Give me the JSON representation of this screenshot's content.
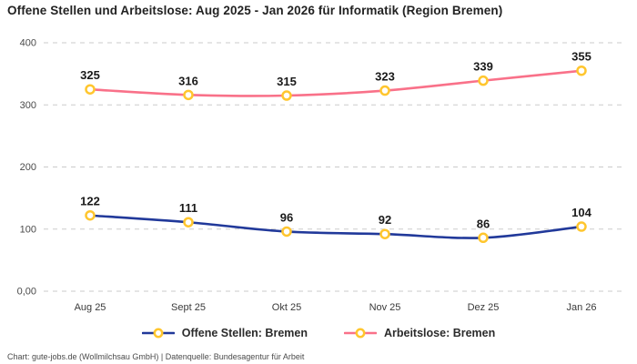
{
  "title": "Offene Stellen und Arbeitslose: Aug 2025 - Jan 2026 für Informatik (Region Bremen)",
  "footer": "Chart: gute-jobs.de (Wollmilchsau GmbH) | Datenquelle: Bundesagentur für Arbeit",
  "colors": {
    "background": "#ffffff",
    "title_text": "#222222",
    "gridline": "#cbcbcb",
    "tick_text": "#4a4a4a",
    "value_label_text": "#1a1a1a",
    "marker_ring": "#ffc62e",
    "marker_fill": "#ffffff",
    "series_offene_stellen": "#21399a",
    "series_arbeitslose": "#f97189"
  },
  "chart_data": {
    "type": "line",
    "title": "Offene Stellen und Arbeitslose: Aug 2025 - Jan 2026 für Informatik (Region Bremen)",
    "categories": [
      "Aug 25",
      "Sept 25",
      "Okt 25",
      "Nov 25",
      "Dez 25",
      "Jan 26"
    ],
    "series": [
      {
        "name": "Offene Stellen: Bremen",
        "color": "#21399a",
        "values": [
          122,
          111,
          96,
          92,
          86,
          104
        ]
      },
      {
        "name": "Arbeitslose: Bremen",
        "color": "#f97189",
        "values": [
          325,
          316,
          315,
          323,
          339,
          355
        ]
      }
    ],
    "xlabel": "",
    "ylabel": "",
    "ylim": [
      0,
      400
    ],
    "yticks": [
      0,
      100,
      200,
      300,
      400
    ],
    "ytick_labels": [
      "0,00",
      "100",
      "200",
      "300",
      "400"
    ],
    "grid": "horizontal-dashed",
    "data_labels": "above-points",
    "marker": "circle-gold-ring-white-fill",
    "legend_position": "bottom",
    "smooth_lines": true
  }
}
